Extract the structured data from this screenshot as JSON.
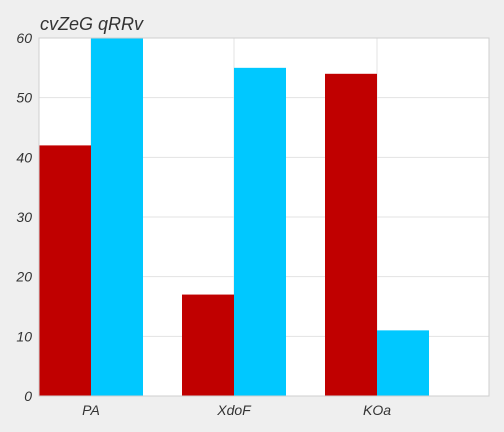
{
  "chart_data": {
    "type": "bar",
    "title": "cvZeG qRRv",
    "xlabel": "",
    "ylabel": "",
    "categories": [
      "PA",
      "XdoF",
      "KOa"
    ],
    "series": [
      {
        "values": [
          42,
          17,
          54
        ],
        "color": "#c00000"
      },
      {
        "values": [
          60,
          55,
          11
        ],
        "color": "#00c8ff"
      }
    ],
    "ylim": [
      0,
      60
    ],
    "yticks": [
      0,
      10,
      20,
      30,
      40,
      50,
      60
    ],
    "grid": true,
    "legend": "none"
  }
}
